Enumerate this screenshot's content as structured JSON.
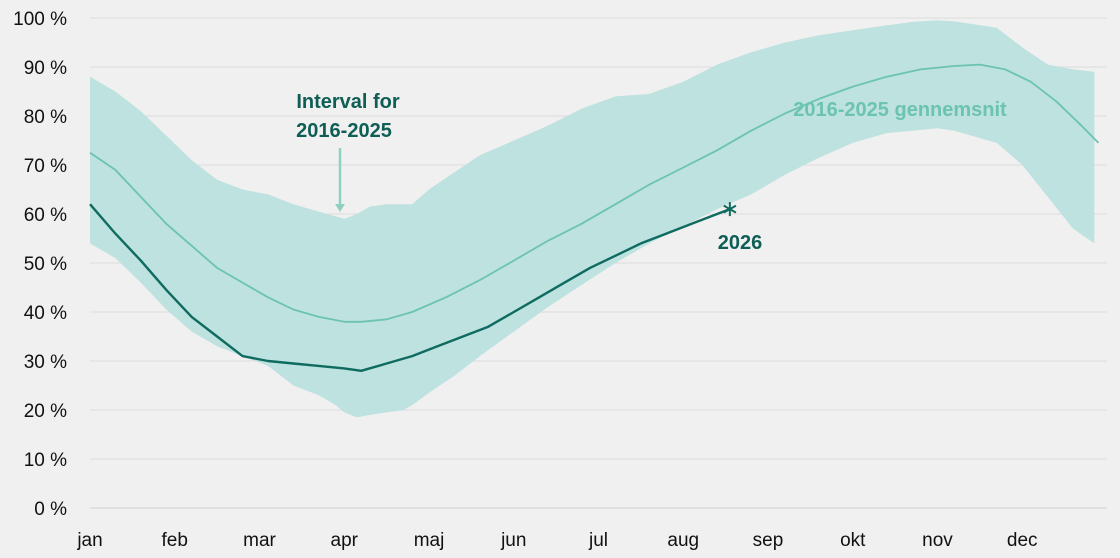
{
  "chart_data": {
    "type": "line",
    "y_unit": "%",
    "ylim": [
      0,
      100
    ],
    "y_ticks": [
      0,
      10,
      20,
      30,
      40,
      50,
      60,
      70,
      80,
      90,
      100
    ],
    "y_tick_labels": [
      "0 %",
      "10 %",
      "20 %",
      "30 %",
      "40 %",
      "50 %",
      "60 %",
      "70 %",
      "80 %",
      "90 %",
      "100 %"
    ],
    "month_labels": [
      "jan",
      "feb",
      "mar",
      "apr",
      "maj",
      "jun",
      "jul",
      "aug",
      "sep",
      "okt",
      "nov",
      "dec"
    ],
    "xlim_month": [
      0,
      12
    ],
    "grid": "horizontal",
    "band": {
      "label": "Interval for\n2016-2025",
      "x": [
        0,
        0.3,
        0.6,
        0.9,
        1.2,
        1.5,
        1.8,
        2.1,
        2.4,
        2.7,
        2.9,
        3.0,
        3.15,
        3.3,
        3.5,
        3.7,
        3.8,
        4.0,
        4.3,
        4.6,
        5.0,
        5.4,
        5.8,
        6.2,
        6.6,
        7.0,
        7.4,
        7.8,
        8.2,
        8.6,
        9.0,
        9.4,
        9.7,
        10.0,
        10.2,
        10.4,
        10.7,
        11.0,
        11.3,
        11.6,
        11.85
      ],
      "upper": [
        88,
        85,
        81,
        76,
        71,
        67,
        65,
        64,
        62,
        60.5,
        59.5,
        59,
        60,
        61.5,
        62,
        62,
        62,
        65,
        68.5,
        72,
        75,
        78,
        81.5,
        84,
        84.5,
        87,
        90.5,
        93,
        95,
        96.5,
        97.5,
        98.5,
        99.2,
        99.5,
        99.3,
        98.8,
        98,
        94,
        90.5,
        89.5,
        89
      ],
      "lower": [
        54,
        51,
        46,
        40.5,
        36,
        33,
        31,
        29,
        25,
        23,
        21,
        19.5,
        18.5,
        19,
        19.5,
        20,
        21,
        23.5,
        27,
        31,
        36,
        41,
        45.5,
        50,
        54,
        57.5,
        61,
        64,
        68,
        71.5,
        74.5,
        76.5,
        77,
        77.5,
        77,
        76,
        74.5,
        70,
        63.5,
        57,
        54
      ]
    },
    "series": [
      {
        "name": "2016-2025 gennemsnit",
        "color": "#6cc3b0",
        "x": [
          0,
          0.3,
          0.6,
          0.9,
          1.2,
          1.5,
          1.8,
          2.1,
          2.4,
          2.7,
          3.0,
          3.2,
          3.5,
          3.8,
          4.2,
          4.6,
          5.0,
          5.4,
          5.8,
          6.2,
          6.6,
          7.0,
          7.4,
          7.8,
          8.2,
          8.6,
          9.0,
          9.4,
          9.8,
          10.2,
          10.5,
          10.8,
          11.1,
          11.4,
          11.7,
          11.9
        ],
        "y": [
          72.5,
          69,
          63.5,
          58,
          53.5,
          49,
          46,
          43,
          40.5,
          39,
          38,
          38,
          38.5,
          40,
          43,
          46.5,
          50.5,
          54.5,
          58,
          62,
          66,
          69.5,
          73,
          77,
          80.5,
          83.5,
          86,
          88,
          89.5,
          90.2,
          90.5,
          89.5,
          87,
          83,
          78,
          74.5
        ]
      },
      {
        "name": "2026",
        "color": "#0f6b60",
        "x": [
          0,
          0.3,
          0.6,
          0.9,
          1.2,
          1.5,
          1.8,
          2.1,
          2.4,
          2.7,
          3.0,
          3.2,
          3.5,
          3.8,
          4.1,
          4.4,
          4.7,
          5.0,
          5.3,
          5.6,
          5.9,
          6.2,
          6.5,
          6.8,
          7.1,
          7.4,
          7.55
        ],
        "y": [
          62,
          56,
          50.5,
          44.5,
          39,
          35,
          31,
          30,
          29.5,
          29,
          28.5,
          28,
          29.5,
          31,
          33,
          35,
          37,
          40,
          43,
          46,
          49,
          51.5,
          54,
          56,
          58,
          60,
          61
        ]
      }
    ],
    "annotations": [
      {
        "text": "2016-2025 gennemsnit"
      },
      {
        "text": "2026"
      }
    ]
  }
}
